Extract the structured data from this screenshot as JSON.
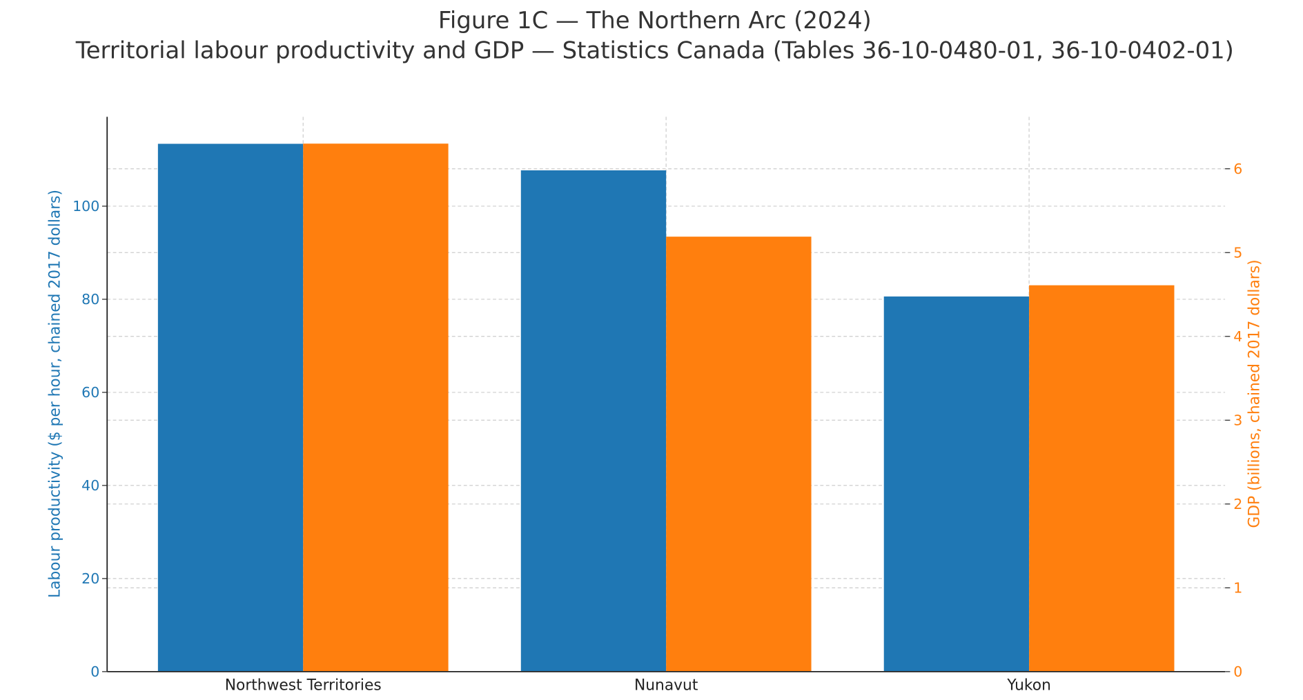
{
  "chart_data": {
    "type": "bar",
    "title": "Figure 1C — The Northern Arc (2024)",
    "subtitle": "Territorial labour productivity and GDP — Statistics Canada (Tables 36-10-0480-01, 36-10-0402-01)",
    "categories": [
      "Northwest Territories",
      "Nunavut",
      "Yukon"
    ],
    "series": [
      {
        "axis": "left",
        "color": "#1f77b4",
        "values": [
          113.4,
          107.7,
          80.6
        ]
      },
      {
        "axis": "right",
        "color": "#ff7f0e",
        "values": [
          6.3,
          5.19,
          4.61
        ]
      }
    ],
    "ylabel": "Labour productivity ($ per hour, chained 2017 dollars)",
    "ylabel_right": "GDP (billions, chained 2017 dollars)",
    "ylim": [
      0,
      119.2
    ],
    "ylim_right": [
      0,
      6.62
    ],
    "yticks": [
      0,
      20,
      40,
      60,
      80,
      100
    ],
    "yticks_right": [
      0,
      1,
      2,
      3,
      4,
      5,
      6
    ],
    "grid": true,
    "legend": "none"
  }
}
